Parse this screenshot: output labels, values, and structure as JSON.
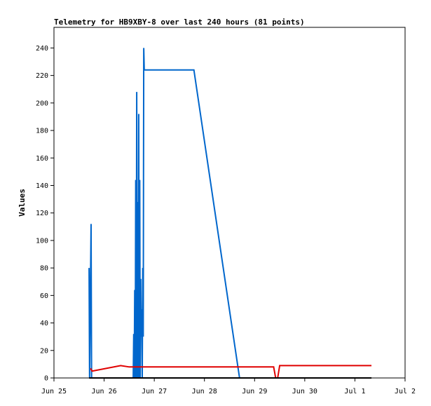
{
  "chart_data": {
    "type": "line",
    "title": "Telemetry for HB9XBY-8 over last 240 hours (81 points)",
    "xlabel": "",
    "ylabel": "Values",
    "x_range": [
      "Jun 25",
      "Jul 2"
    ],
    "ylim": [
      0,
      255
    ],
    "grid": false,
    "legend": "none",
    "x_ticks": [
      "Jun 25",
      "Jun 26",
      "Jun 27",
      "Jun 28",
      "Jun 29",
      "Jun 30",
      "Jul 1",
      "Jul 2"
    ],
    "y_ticks": [
      0,
      20,
      40,
      60,
      80,
      100,
      120,
      140,
      160,
      180,
      200,
      220,
      240
    ],
    "series": [
      {
        "color": "#0066cc",
        "points": [
          [
            0.7,
            80
          ],
          [
            0.71,
            0
          ],
          [
            0.74,
            112
          ],
          [
            0.75,
            0
          ],
          [
            1.58,
            0
          ],
          [
            1.59,
            32
          ],
          [
            1.6,
            0
          ],
          [
            1.61,
            64
          ],
          [
            1.62,
            0
          ],
          [
            1.63,
            144
          ],
          [
            1.64,
            0
          ],
          [
            1.65,
            208
          ],
          [
            1.66,
            0
          ],
          [
            1.67,
            128
          ],
          [
            1.68,
            0
          ],
          [
            1.69,
            192
          ],
          [
            1.7,
            0
          ],
          [
            1.71,
            144
          ],
          [
            1.72,
            0
          ],
          [
            1.73,
            72
          ],
          [
            1.74,
            30
          ],
          [
            1.75,
            50
          ],
          [
            1.76,
            0
          ],
          [
            1.77,
            80
          ],
          [
            1.78,
            30
          ],
          [
            1.79,
            240
          ],
          [
            1.8,
            224
          ],
          [
            2.79,
            224
          ],
          [
            3.7,
            0
          ]
        ]
      },
      {
        "color": "#e00000",
        "points": [
          [
            0.73,
            7
          ],
          [
            0.76,
            5
          ],
          [
            1.33,
            9
          ],
          [
            1.5,
            8
          ],
          [
            1.8,
            8
          ],
          [
            4.38,
            8
          ],
          [
            4.42,
            0
          ],
          [
            4.46,
            0
          ],
          [
            4.5,
            9
          ],
          [
            6.33,
            9
          ]
        ]
      },
      {
        "color": "#000000",
        "points": [
          [
            0.7,
            0
          ],
          [
            6.33,
            0
          ]
        ]
      }
    ]
  }
}
